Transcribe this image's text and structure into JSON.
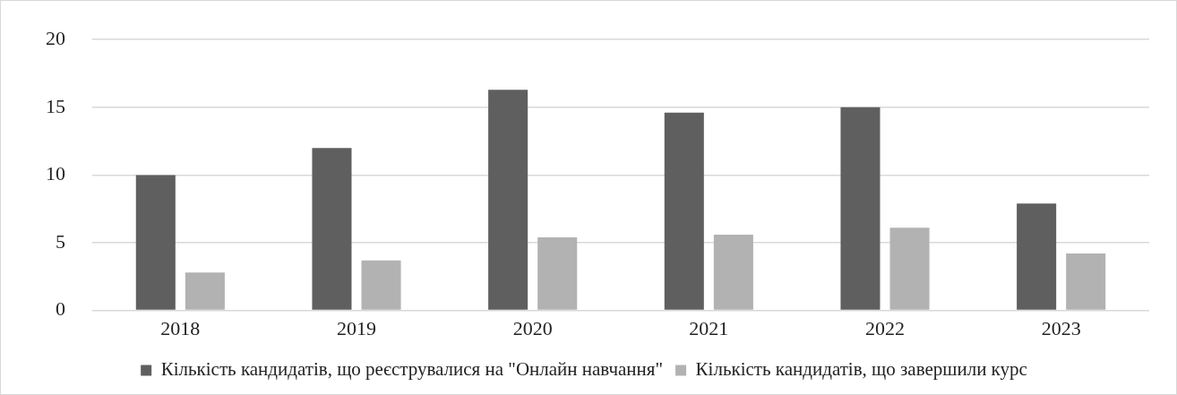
{
  "chart_data": {
    "type": "bar",
    "categories": [
      "2018",
      "2019",
      "2020",
      "2021",
      "2022",
      "2023"
    ],
    "series": [
      {
        "name": "Кількість кандидатів, що реєструвалися на \"Онлайн навчання\"",
        "color": "#5f5f5f",
        "values": [
          10,
          12,
          16.3,
          14.6,
          15,
          7.9
        ]
      },
      {
        "name": "Кількість кандидатів, що завершили курс",
        "color": "#b2b2b2",
        "values": [
          2.8,
          3.7,
          5.4,
          5.6,
          6.1,
          4.2
        ]
      }
    ],
    "ylim": [
      0,
      20
    ],
    "yticks": [
      0,
      5,
      10,
      15,
      20
    ],
    "grid": "y",
    "legend": "bottom"
  }
}
